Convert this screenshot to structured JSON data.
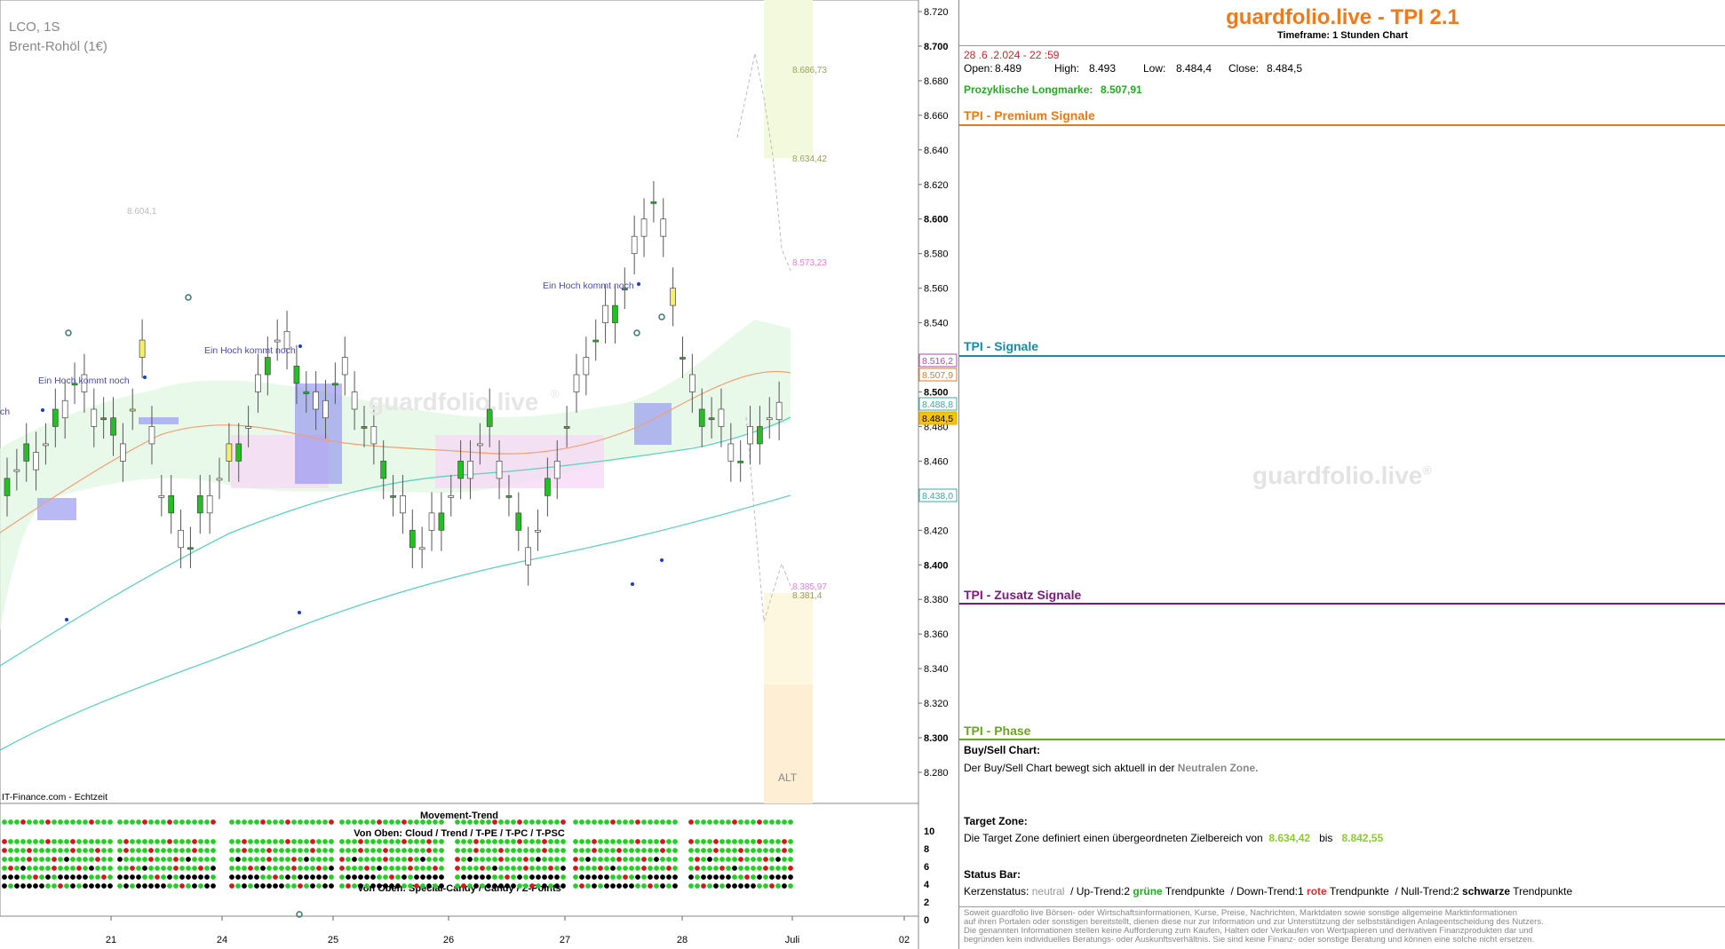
{
  "chart_data": {
    "type": "candlestick",
    "symbol": "LCO, 1S",
    "name": "Brent-Rohöl (1€)",
    "source": "IT-Finance.com - Echtzeit",
    "watermark": "guardfolio.live",
    "watermark_mark": "®",
    "y_ticks": [
      "8.280",
      "8.300",
      "8.320",
      "8.340",
      "8.360",
      "8.380",
      "8.400",
      "8.420",
      "8.440",
      "8.460",
      "8.480",
      "8.500",
      "8.520",
      "8.540",
      "8.560",
      "8.580",
      "8.600",
      "8.620",
      "8.640",
      "8.660",
      "8.680",
      "8.700",
      "8.720"
    ],
    "x_ticks": [
      "21",
      "24",
      "25",
      "26",
      "27",
      "28",
      "Juli",
      "02"
    ],
    "price_tags": [
      {
        "label": "8.516,2",
        "color": "#b04ab0"
      },
      {
        "label": "8.507,9",
        "color": "#e07a2a"
      },
      {
        "label": "8.488,8",
        "color": "#3aa7a7"
      },
      {
        "label": "8.484,5",
        "color": "#e0a800"
      },
      {
        "label": "8.438,0",
        "color": "#3aa7a7"
      }
    ],
    "target_labels": [
      "8.686,73",
      "8.634,42",
      "8.573,23",
      "8.385,97",
      "8.381,4",
      "8.604,1"
    ],
    "annotations": [
      "Ein Hoch kommt noch",
      "Ein Hoch kommt noch",
      "Ein Hoch kommt noch",
      "ch",
      "ALT"
    ],
    "lower_panel": {
      "title": "Movement-Trend",
      "subtitle_top": "Von Oben: Cloud / Trend / T-PE / T-PC / T-PSC",
      "subtitle_bottom": "Von Oben: Special-Candy / Candy / Z-Points",
      "y_ticks": [
        "0",
        "2",
        "4",
        "6",
        "8",
        "10"
      ]
    }
  },
  "side": {
    "title": "guardfolio.live - TPI 2.1",
    "timeframe": "Timeframe: 1 Stunden Chart",
    "datetime": "28 .6 .2.024  - 22 :59",
    "ohlc": [
      {
        "label": "Open:",
        "value": "8.489"
      },
      {
        "label": "High:",
        "value": "8.493"
      },
      {
        "label": "Low:",
        "value": "8.484,4"
      },
      {
        "label": "Close:",
        "value": "8.484,5"
      }
    ],
    "longmark_label": "Prozyklische Longmarke:",
    "longmark_value": "8.507,91",
    "sections": {
      "premium": "TPI - Premium Signale",
      "signale": "TPI - Signale",
      "zusatz": "TPI - Zusatz Signale",
      "phase": "TPI - Phase"
    },
    "colors": {
      "premium": "#e87a1a",
      "signale": "#1a8aa6",
      "zusatz": "#7a1a7a",
      "phase": "#6aa61a"
    },
    "watermark": "guardfolio.live",
    "watermark_mark": "®",
    "buysell_title": "Buy/Sell Chart:",
    "buysell_text": "Der Buy/Sell Chart bewegt sich aktuell in der",
    "buysell_zone": "Neutralen Zone.",
    "target_title": "Target Zone:",
    "target_text": "Die Target Zone definiert einen übergeordneten Zielbereich von",
    "target_from": "8.634,42",
    "target_bis": "bis",
    "target_to": "8.842,55",
    "status_title": "Status Bar:",
    "status": {
      "k_label": "Kerzenstatus:",
      "k_value": "neutral",
      "up": "/ Up-Trend:2",
      "gruene": "grüne",
      "tp1": "Trendpunkte",
      "down": "/ Down-Trend:1",
      "rote": "rote",
      "tp2": "Trendpunkte",
      "null": "/ Null-Trend:2",
      "schwarze": "schwarze",
      "tp3": "Trendpunkte"
    },
    "disclaimer": [
      "Soweit guardfolio live Börsen- oder Wirtschaftsinformationen, Kurse, Preise, Nachrichten, Marktdaten sowie sonstige allgemeine Marktinformationen",
      "auf ihren Portalen oder sonstigen bereitstellt, dienen diese nur zur Information und zur Unterstützung der selbstständigen Anlageentscheidung des Nutzers.",
      "Die genannten Informationen stellen keine Aufforderung zum Kaufen, Halten oder Verkaufen von Wertpapieren und derivativen Finanzprodukten dar und",
      "begründen kein individuelles Beratungs- oder Auskunftsverhältnis. Sie sind keine Finanz- oder sonstige Beratung und können eine solche nicht ersetzen."
    ]
  }
}
